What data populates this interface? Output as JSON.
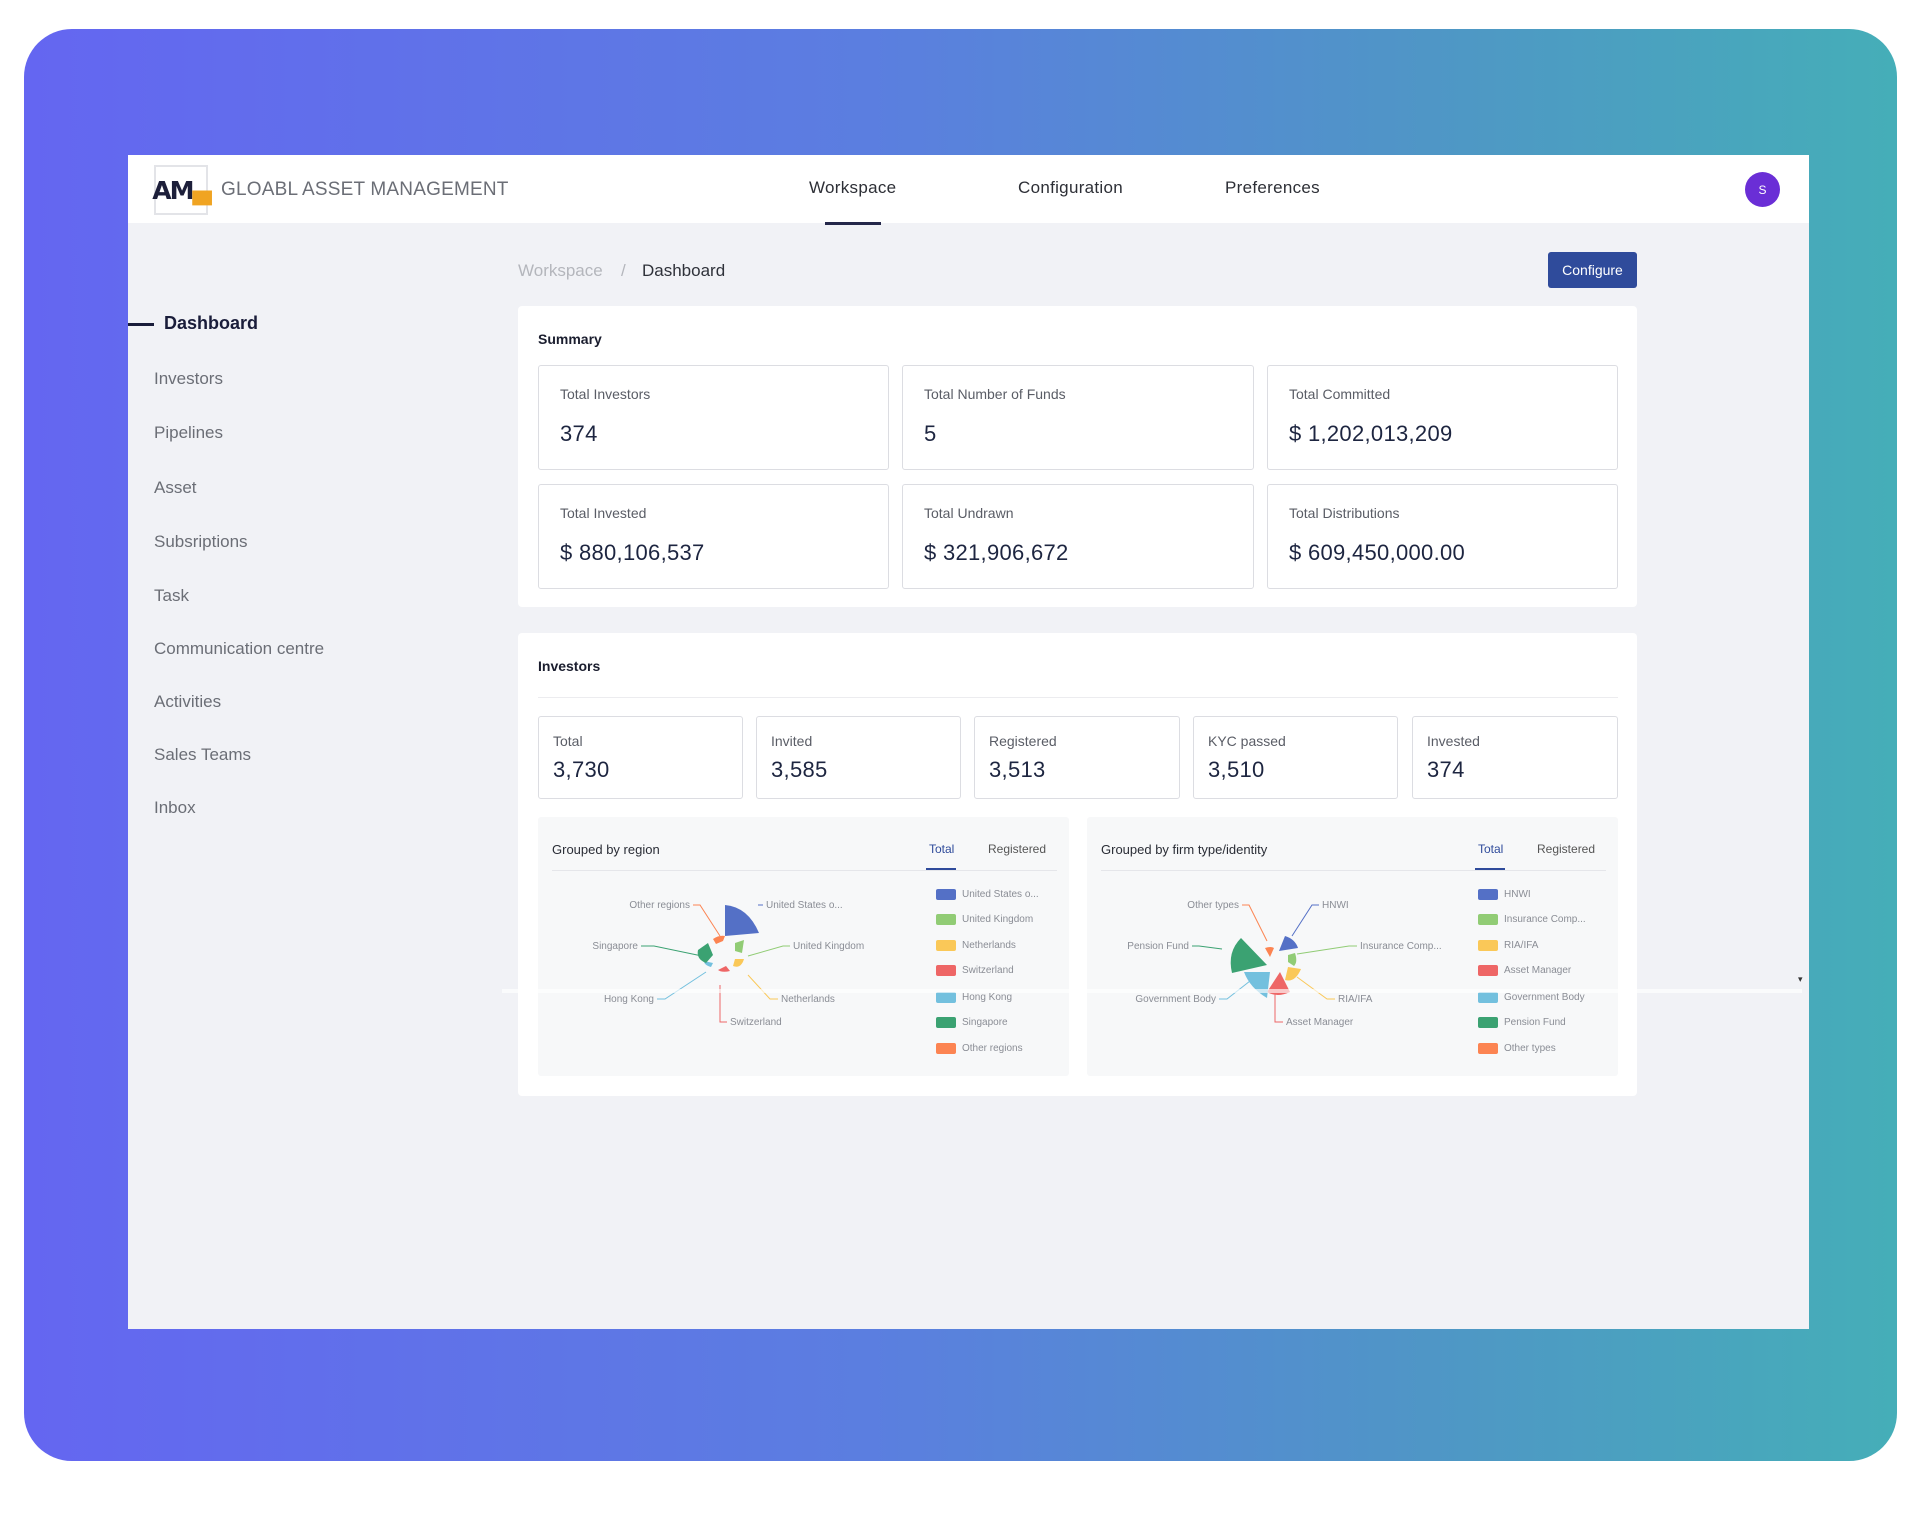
{
  "brand": {
    "logo_main": "AM",
    "logo_accent": "▄",
    "name": "GLOABL ASSET MANAGEMENT"
  },
  "nav": {
    "workspace": "Workspace",
    "configuration": "Configuration",
    "preferences": "Preferences"
  },
  "user": {
    "initial": "S"
  },
  "sidebar": {
    "items": [
      "Dashboard",
      "Investors",
      "Pipelines",
      "Asset",
      "Subsriptions",
      "Task",
      "Communication centre",
      "Activities",
      "Sales Teams",
      "Inbox"
    ]
  },
  "breadcrumb": {
    "parent": "Workspace",
    "separator": "/",
    "current": "Dashboard"
  },
  "configure_label": "Configure",
  "summary": {
    "title": "Summary",
    "stats": [
      {
        "label": "Total Investors",
        "value": "374"
      },
      {
        "label": "Total Number of Funds",
        "value": "5"
      },
      {
        "label": "Total Committed",
        "value": "$ 1,202,013,209"
      },
      {
        "label": "Total Invested",
        "value": "$ 880,106,537"
      },
      {
        "label": "Total Undrawn",
        "value": "$ 321,906,672"
      },
      {
        "label": "Total Distributions",
        "value": "$ 609,450,000.00"
      }
    ]
  },
  "investors": {
    "title": "Investors",
    "stats": [
      {
        "label": "Total",
        "value": "3,730"
      },
      {
        "label": "Invited",
        "value": "3,585"
      },
      {
        "label": "Registered",
        "value": "3,513"
      },
      {
        "label": "KYC passed",
        "value": "3,510"
      },
      {
        "label": "Invested",
        "value": "374"
      }
    ]
  },
  "region_panel": {
    "title": "Grouped by region",
    "tabs": [
      "Total",
      "Registered"
    ],
    "legend": [
      "United States o...",
      "United Kingdom",
      "Netherlands",
      "Switzerland",
      "Hong Kong",
      "Singapore",
      "Other regions"
    ],
    "labels": [
      "Other regions",
      "United States o...",
      "Singapore",
      "United Kingdom",
      "Hong Kong",
      "Netherlands",
      "Switzerland"
    ]
  },
  "firm_panel": {
    "title": "Grouped by firm type/identity",
    "tabs": [
      "Total",
      "Registered"
    ],
    "legend": [
      "HNWI",
      "Insurance Comp...",
      "RIA/IFA",
      "Asset Manager",
      "Government Body",
      "Pension Fund",
      "Other types"
    ],
    "labels": [
      "Other types",
      "HNWI",
      "Pension Fund",
      "Insurance Comp...",
      "Government Body",
      "RIA/IFA",
      "Asset Manager"
    ]
  },
  "colors": {
    "blue": "#5470c6",
    "green": "#91cc75",
    "yellow": "#fac858",
    "red": "#ee6666",
    "light_blue": "#73c0de",
    "dark_green": "#3ba272",
    "orange": "#fc8452",
    "primary": "#2f4b9b",
    "avatar": "#6a2ed6"
  }
}
